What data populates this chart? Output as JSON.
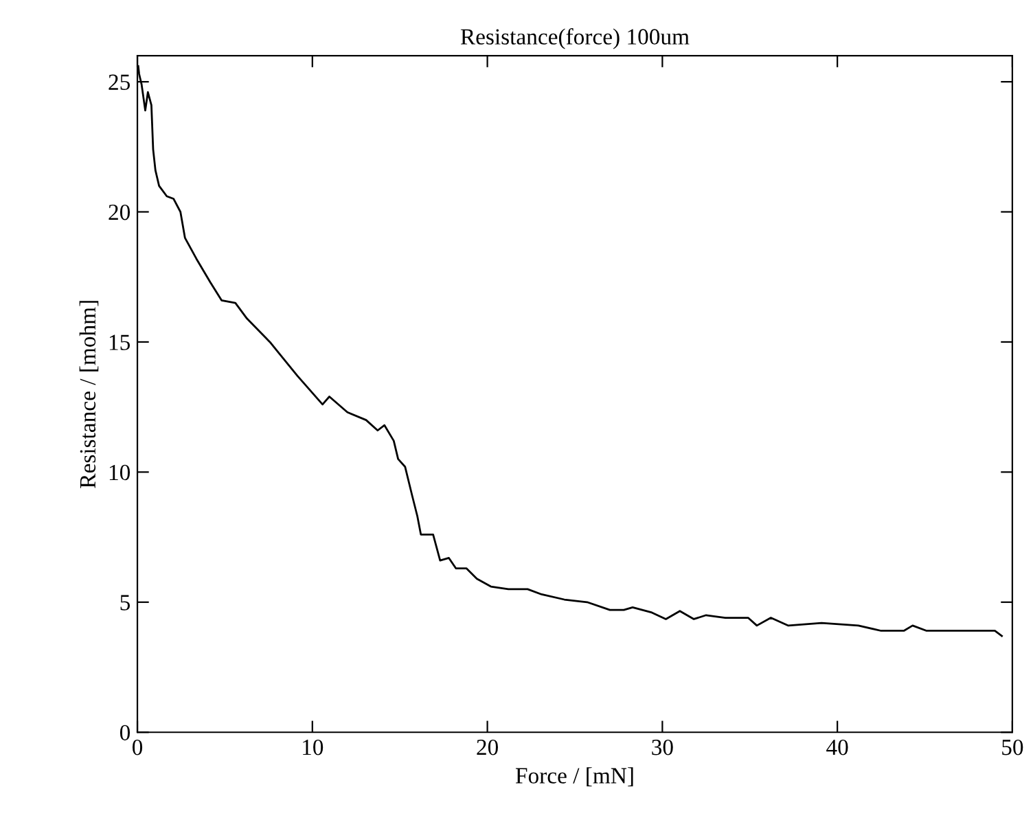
{
  "chart_data": {
    "type": "line",
    "title": "Resistance(force) 100um",
    "xlabel": "Force / [mN]",
    "ylabel": "Resistance / [mohm]",
    "xlim": [
      0,
      50
    ],
    "ylim": [
      0,
      26
    ],
    "xticks": [
      0,
      10,
      20,
      30,
      40,
      50
    ],
    "yticks": [
      0,
      5,
      10,
      15,
      20,
      25
    ],
    "marker": "none",
    "line_style": "solid",
    "series": [
      {
        "color": "#000000",
        "x": [
          0.05,
          0.1,
          0.24,
          0.45,
          0.6,
          0.8,
          0.9,
          1.03,
          1.24,
          1.68,
          2.07,
          2.46,
          2.72,
          3.37,
          4.16,
          4.81,
          5.6,
          6.26,
          7.57,
          9.14,
          10.58,
          10.97,
          12.0,
          13.07,
          13.73,
          14.12,
          14.65,
          14.9,
          15.3,
          15.7,
          16.0,
          16.2,
          16.9,
          17.3,
          17.8,
          18.2,
          18.8,
          19.4,
          20.2,
          21.2,
          22.3,
          23.1,
          24.4,
          25.7,
          27.0,
          27.8,
          28.3,
          29.4,
          30.2,
          31.0,
          31.8,
          32.5,
          33.6,
          34.9,
          35.4,
          36.2,
          37.2,
          39.1,
          41.2,
          42.5,
          43.8,
          44.3,
          45.1,
          47.7,
          49.0,
          49.4
        ],
        "values": [
          25.6,
          25.3,
          24.9,
          23.9,
          24.6,
          24.1,
          22.4,
          21.6,
          21.0,
          20.6,
          20.5,
          20.0,
          19.0,
          18.2,
          17.3,
          16.6,
          16.5,
          15.9,
          15.0,
          13.7,
          12.6,
          12.9,
          12.3,
          12.0,
          11.6,
          11.8,
          11.2,
          10.5,
          10.2,
          9.1,
          8.3,
          7.6,
          7.6,
          6.6,
          6.7,
          6.3,
          6.3,
          5.9,
          5.6,
          5.5,
          5.5,
          5.3,
          5.1,
          5.0,
          4.7,
          4.7,
          4.8,
          4.6,
          4.35,
          4.66,
          4.35,
          4.5,
          4.4,
          4.4,
          4.1,
          4.4,
          4.1,
          4.2,
          4.1,
          3.9,
          3.9,
          4.1,
          3.9,
          3.9,
          3.9,
          3.7
        ]
      }
    ]
  }
}
